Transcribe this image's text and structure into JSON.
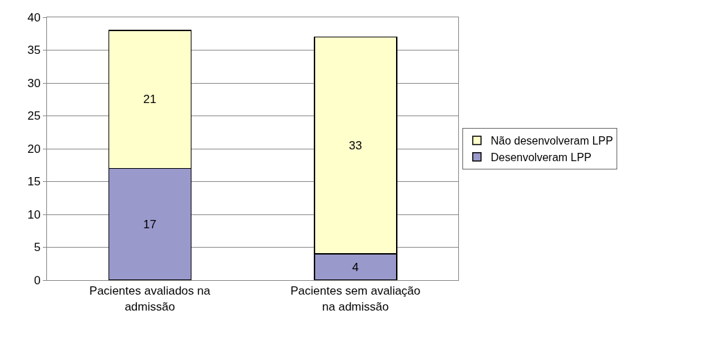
{
  "chart_data": {
    "type": "bar",
    "stacked": true,
    "categories": [
      "Pacientes avaliados na admissão",
      "Pacientes sem avaliação na admissão"
    ],
    "series": [
      {
        "name": "Desenvolveram LPP",
        "color": "#9999cc",
        "values": [
          17,
          4
        ]
      },
      {
        "name": "Não desenvolveram LPP",
        "color": "#ffffcc",
        "values": [
          21,
          33
        ]
      }
    ],
    "ylim": [
      0,
      40
    ],
    "yticks": [
      0,
      5,
      10,
      15,
      20,
      25,
      30,
      35,
      40
    ],
    "grid": "y",
    "legend": "right",
    "data_labels": true
  }
}
